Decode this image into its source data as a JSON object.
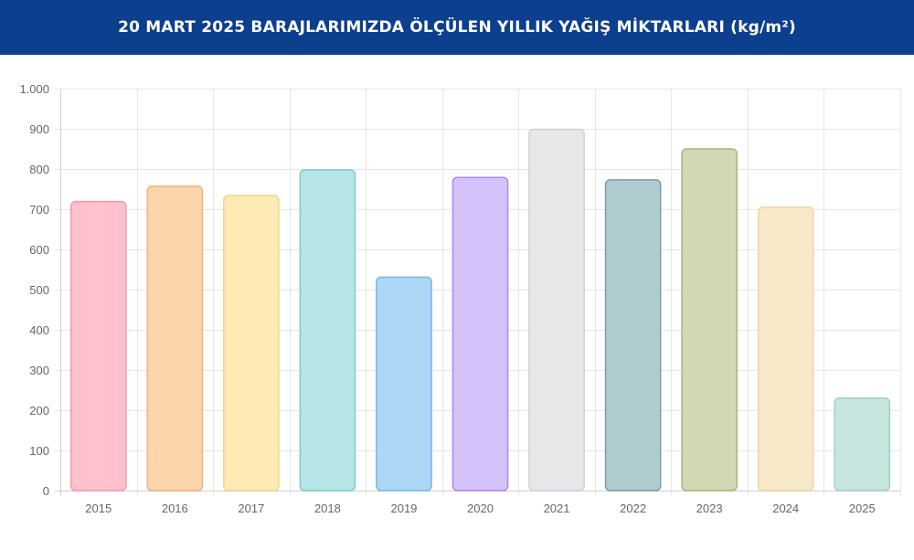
{
  "header": {
    "title": "20 MART 2025 BARAJLARIMIZDA ÖLÇÜLEN YILLIK YAĞIŞ MİKTARLARI (kg/m²)"
  },
  "chart_data": {
    "type": "bar",
    "title": "20 MART 2025 BARAJLARIMIZDA ÖLÇÜLEN YILLIK YAĞIŞ MİKTARLARI (kg/m²)",
    "categories": [
      "2015",
      "2016",
      "2017",
      "2018",
      "2019",
      "2020",
      "2021",
      "2022",
      "2023",
      "2024",
      "2025"
    ],
    "values": [
      719,
      757,
      734,
      798,
      531,
      779,
      899,
      773,
      850,
      705,
      230
    ],
    "ylim": [
      0,
      1000
    ],
    "yticks": [
      0,
      100,
      200,
      300,
      400,
      500,
      600,
      700,
      800,
      900,
      1000
    ],
    "ytick_labels": [
      "0",
      "100",
      "200",
      "300",
      "400",
      "500",
      "600",
      "700",
      "800",
      "900",
      "1.000"
    ],
    "grid": true,
    "legend": "none",
    "bar_fills": [
      "#ffc1cd",
      "#fdd5ad",
      "#ffe9b5",
      "#b5e5e6",
      "#acd7f6",
      "#d5c2fb",
      "#e6e7e9",
      "#b0cbcf",
      "#d2d8b1",
      "#f7e8c8",
      "#c6e6df"
    ],
    "bar_strokes": [
      "#f497ac",
      "#f3b27c",
      "#f6d486",
      "#86c9cb",
      "#7ab5e5",
      "#a889ea",
      "#cfd1d4",
      "#7d9ea3",
      "#aab67d",
      "#ecd7a4",
      "#9fd1c5"
    ]
  }
}
